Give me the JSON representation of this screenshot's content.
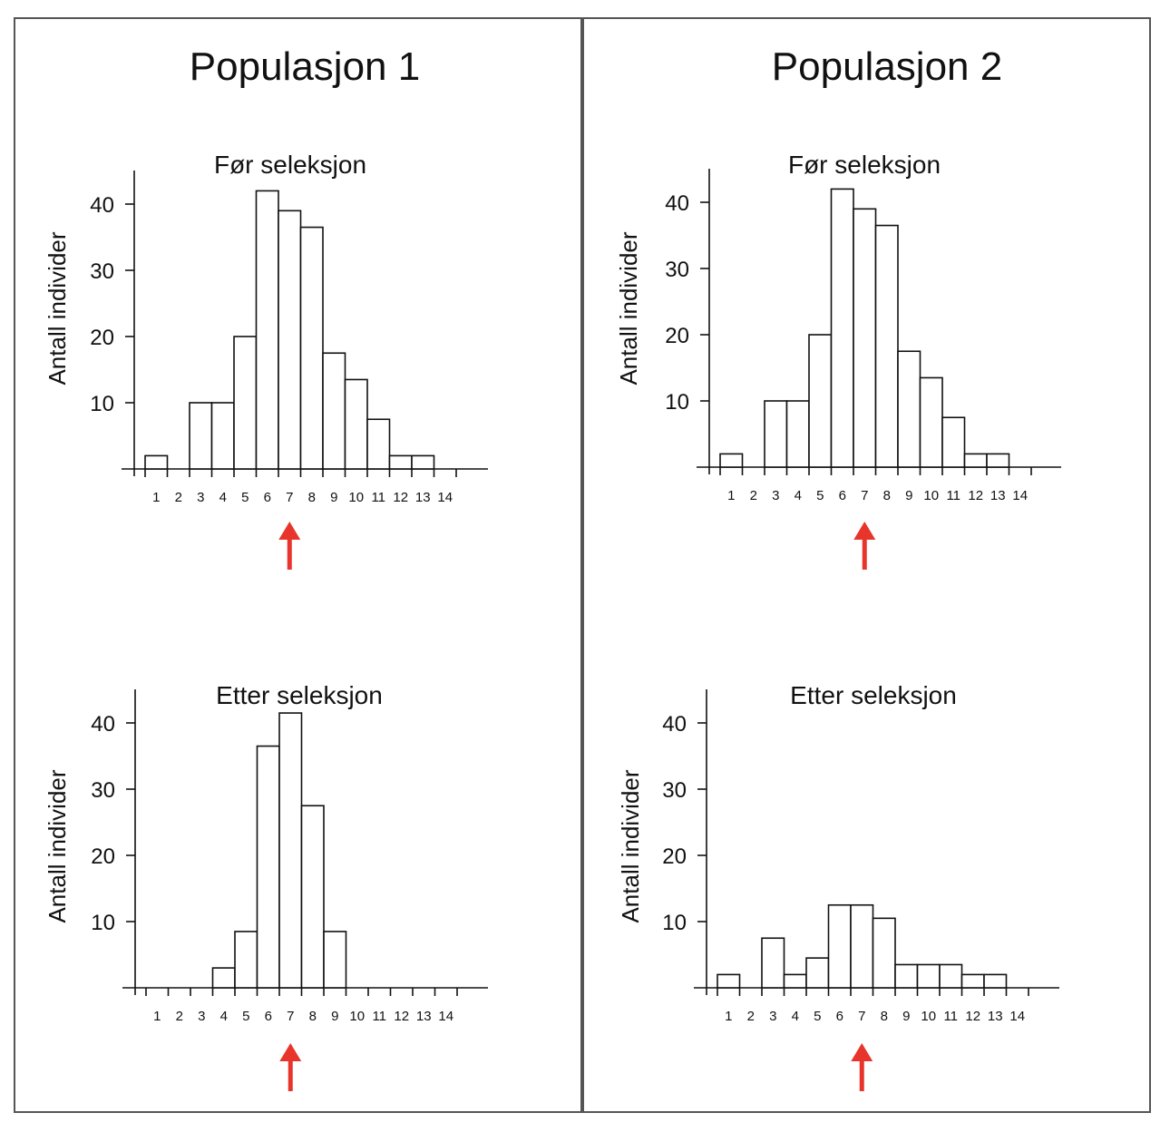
{
  "populations": [
    {
      "title": "Populasjon 1",
      "panels": [
        {
          "title": "Før seleksjon",
          "ylabel": "Antall individer"
        },
        {
          "title": "Etter seleksjon",
          "ylabel": "Antall individer"
        }
      ]
    },
    {
      "title": "Populasjon 2",
      "panels": [
        {
          "title": "Før seleksjon",
          "ylabel": "Antall individer"
        },
        {
          "title": "Etter seleksjon",
          "ylabel": "Antall individer"
        }
      ]
    }
  ],
  "arrow_color": "#e8352b",
  "chart_data": [
    {
      "type": "bar",
      "title": "Før seleksjon",
      "ylabel": "Antall individer",
      "categories": [
        "1",
        "2",
        "3",
        "4",
        "5",
        "6",
        "7",
        "8",
        "9",
        "10",
        "11",
        "12",
        "13",
        "14"
      ],
      "values": [
        2,
        0,
        10,
        10,
        20,
        42,
        39,
        36.5,
        17.5,
        13.5,
        7.5,
        2,
        2,
        0
      ],
      "yticks": [
        10,
        20,
        30,
        40
      ],
      "ylim": [
        0,
        45
      ],
      "marker_category": "7"
    },
    {
      "type": "bar",
      "title": "Etter seleksjon",
      "ylabel": "Antall individer",
      "categories": [
        "1",
        "2",
        "3",
        "4",
        "5",
        "6",
        "7",
        "8",
        "9",
        "10",
        "11",
        "12",
        "13",
        "14"
      ],
      "values": [
        0,
        0,
        0,
        3,
        8.5,
        36.5,
        41.5,
        27.5,
        8.5,
        0,
        0,
        0,
        0,
        0
      ],
      "yticks": [
        10,
        20,
        30,
        40
      ],
      "ylim": [
        0,
        45
      ],
      "marker_category": "7"
    },
    {
      "type": "bar",
      "title": "Før seleksjon",
      "ylabel": "Antall individer",
      "categories": [
        "1",
        "2",
        "3",
        "4",
        "5",
        "6",
        "7",
        "8",
        "9",
        "10",
        "11",
        "12",
        "13",
        "14"
      ],
      "values": [
        2,
        0,
        10,
        10,
        20,
        42,
        39,
        36.5,
        17.5,
        13.5,
        7.5,
        2,
        2,
        0
      ],
      "yticks": [
        10,
        20,
        30,
        40
      ],
      "ylim": [
        0,
        45
      ],
      "marker_category": "7"
    },
    {
      "type": "bar",
      "title": "Etter seleksjon",
      "ylabel": "Antall individer",
      "categories": [
        "1",
        "2",
        "3",
        "4",
        "5",
        "6",
        "7",
        "8",
        "9",
        "10",
        "11",
        "12",
        "13",
        "14"
      ],
      "values": [
        2,
        0,
        7.5,
        2,
        4.5,
        12.5,
        12.5,
        10.5,
        3.5,
        3.5,
        3.5,
        2,
        2,
        0
      ],
      "yticks": [
        10,
        20,
        30,
        40
      ],
      "ylim": [
        0,
        45
      ],
      "marker_category": "7"
    }
  ]
}
